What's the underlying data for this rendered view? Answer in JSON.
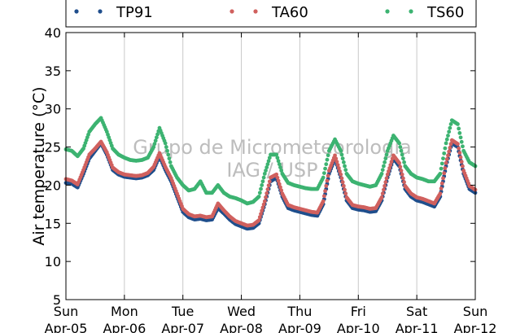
{
  "chart_data": {
    "type": "scatter",
    "title": "",
    "xlabel": "",
    "ylabel": "Air temperature (°C)",
    "ylim": [
      5,
      40
    ],
    "yticks": [
      5,
      10,
      15,
      20,
      25,
      30,
      35,
      40
    ],
    "grid": "vertical",
    "legend_position": "top",
    "x_ticks": [
      {
        "day": 0,
        "label1": "Sun",
        "label2": "Apr-05"
      },
      {
        "day": 1,
        "label1": "Mon",
        "label2": "Apr-06"
      },
      {
        "day": 2,
        "label1": "Tue",
        "label2": "Apr-07"
      },
      {
        "day": 3,
        "label1": "Wed",
        "label2": "Apr-08"
      },
      {
        "day": 4,
        "label1": "Thu",
        "label2": "Apr-09"
      },
      {
        "day": 5,
        "label1": "Fri",
        "label2": "Apr-10"
      },
      {
        "day": 6,
        "label1": "Sat",
        "label2": "Apr-11"
      },
      {
        "day": 7,
        "label1": "Sun",
        "label2": "Apr-12"
      }
    ],
    "watermark": [
      "Grupo de Micrometeorologia",
      "IAG / USP"
    ],
    "series": [
      {
        "name": "TP91",
        "color": "#1f4e8c",
        "points": [
          [
            0.0,
            20.3
          ],
          [
            0.1,
            20.2
          ],
          [
            0.2,
            19.7
          ],
          [
            0.3,
            21.5
          ],
          [
            0.4,
            23.5
          ],
          [
            0.5,
            24.5
          ],
          [
            0.6,
            25.5
          ],
          [
            0.7,
            24.0
          ],
          [
            0.8,
            22.0
          ],
          [
            0.9,
            21.4
          ],
          [
            1.0,
            21.1
          ],
          [
            1.1,
            21.0
          ],
          [
            1.2,
            20.9
          ],
          [
            1.3,
            21.0
          ],
          [
            1.4,
            21.3
          ],
          [
            1.5,
            22.0
          ],
          [
            1.6,
            23.8
          ],
          [
            1.7,
            22.0
          ],
          [
            1.8,
            20.5
          ],
          [
            1.9,
            18.5
          ],
          [
            2.0,
            16.5
          ],
          [
            2.1,
            15.8
          ],
          [
            2.2,
            15.5
          ],
          [
            2.3,
            15.6
          ],
          [
            2.4,
            15.4
          ],
          [
            2.5,
            15.5
          ],
          [
            2.6,
            17.0
          ],
          [
            2.7,
            16.3
          ],
          [
            2.8,
            15.5
          ],
          [
            2.9,
            14.9
          ],
          [
            3.0,
            14.6
          ],
          [
            3.1,
            14.3
          ],
          [
            3.2,
            14.4
          ],
          [
            3.3,
            15.0
          ],
          [
            3.4,
            17.5
          ],
          [
            3.5,
            20.5
          ],
          [
            3.6,
            21.0
          ],
          [
            3.7,
            18.5
          ],
          [
            3.8,
            17.0
          ],
          [
            3.9,
            16.7
          ],
          [
            4.0,
            16.5
          ],
          [
            4.1,
            16.3
          ],
          [
            4.2,
            16.1
          ],
          [
            4.3,
            16.0
          ],
          [
            4.4,
            17.5
          ],
          [
            4.5,
            21.5
          ],
          [
            4.6,
            23.5
          ],
          [
            4.7,
            21.0
          ],
          [
            4.8,
            18.0
          ],
          [
            4.9,
            17.0
          ],
          [
            5.0,
            16.8
          ],
          [
            5.1,
            16.7
          ],
          [
            5.2,
            16.5
          ],
          [
            5.3,
            16.6
          ],
          [
            5.4,
            18.0
          ],
          [
            5.5,
            21.0
          ],
          [
            5.6,
            23.5
          ],
          [
            5.7,
            22.5
          ],
          [
            5.8,
            19.5
          ],
          [
            5.9,
            18.5
          ],
          [
            6.0,
            18.0
          ],
          [
            6.1,
            17.8
          ],
          [
            6.2,
            17.5
          ],
          [
            6.3,
            17.2
          ],
          [
            6.4,
            18.5
          ],
          [
            6.5,
            22.5
          ],
          [
            6.6,
            25.5
          ],
          [
            6.7,
            25.0
          ],
          [
            6.8,
            21.5
          ],
          [
            6.9,
            19.5
          ],
          [
            7.0,
            19.0
          ]
        ]
      },
      {
        "name": "TA60",
        "color": "#d0605e",
        "points": [
          [
            0.0,
            20.8
          ],
          [
            0.1,
            20.6
          ],
          [
            0.2,
            20.1
          ],
          [
            0.3,
            22.0
          ],
          [
            0.4,
            24.0
          ],
          [
            0.5,
            24.8
          ],
          [
            0.6,
            25.7
          ],
          [
            0.7,
            24.3
          ],
          [
            0.8,
            22.3
          ],
          [
            0.9,
            21.7
          ],
          [
            1.0,
            21.4
          ],
          [
            1.1,
            21.3
          ],
          [
            1.2,
            21.2
          ],
          [
            1.3,
            21.3
          ],
          [
            1.4,
            21.6
          ],
          [
            1.5,
            22.4
          ],
          [
            1.6,
            24.2
          ],
          [
            1.7,
            22.4
          ],
          [
            1.8,
            20.9
          ],
          [
            1.9,
            18.9
          ],
          [
            2.0,
            16.9
          ],
          [
            2.1,
            16.2
          ],
          [
            2.2,
            15.9
          ],
          [
            2.3,
            16.0
          ],
          [
            2.4,
            15.8
          ],
          [
            2.5,
            15.9
          ],
          [
            2.6,
            17.6
          ],
          [
            2.7,
            16.7
          ],
          [
            2.8,
            15.9
          ],
          [
            2.9,
            15.3
          ],
          [
            3.0,
            15.0
          ],
          [
            3.1,
            14.7
          ],
          [
            3.2,
            14.8
          ],
          [
            3.3,
            15.4
          ],
          [
            3.4,
            17.9
          ],
          [
            3.5,
            21.0
          ],
          [
            3.6,
            21.4
          ],
          [
            3.7,
            18.9
          ],
          [
            3.8,
            17.4
          ],
          [
            3.9,
            17.1
          ],
          [
            4.0,
            16.9
          ],
          [
            4.1,
            16.7
          ],
          [
            4.2,
            16.5
          ],
          [
            4.3,
            16.4
          ],
          [
            4.4,
            17.9
          ],
          [
            4.5,
            21.9
          ],
          [
            4.6,
            23.9
          ],
          [
            4.7,
            21.4
          ],
          [
            4.8,
            18.4
          ],
          [
            4.9,
            17.4
          ],
          [
            5.0,
            17.2
          ],
          [
            5.1,
            17.1
          ],
          [
            5.2,
            16.9
          ],
          [
            5.3,
            17.0
          ],
          [
            5.4,
            18.4
          ],
          [
            5.5,
            21.4
          ],
          [
            5.6,
            23.9
          ],
          [
            5.7,
            22.9
          ],
          [
            5.8,
            19.9
          ],
          [
            5.9,
            18.9
          ],
          [
            6.0,
            18.4
          ],
          [
            6.1,
            18.2
          ],
          [
            6.2,
            17.9
          ],
          [
            6.3,
            17.6
          ],
          [
            6.4,
            18.9
          ],
          [
            6.5,
            22.9
          ],
          [
            6.6,
            25.9
          ],
          [
            6.7,
            25.4
          ],
          [
            6.8,
            21.9
          ],
          [
            6.9,
            19.9
          ],
          [
            7.0,
            19.4
          ]
        ]
      },
      {
        "name": "TS60",
        "color": "#3cb371",
        "points": [
          [
            0.0,
            24.7
          ],
          [
            0.1,
            24.5
          ],
          [
            0.2,
            23.8
          ],
          [
            0.3,
            24.8
          ],
          [
            0.4,
            27.0
          ],
          [
            0.5,
            28.0
          ],
          [
            0.6,
            28.8
          ],
          [
            0.7,
            27.0
          ],
          [
            0.8,
            24.8
          ],
          [
            0.9,
            24.0
          ],
          [
            1.0,
            23.6
          ],
          [
            1.1,
            23.3
          ],
          [
            1.2,
            23.2
          ],
          [
            1.3,
            23.3
          ],
          [
            1.4,
            23.6
          ],
          [
            1.5,
            25.0
          ],
          [
            1.6,
            27.5
          ],
          [
            1.7,
            25.5
          ],
          [
            1.8,
            22.5
          ],
          [
            1.9,
            21.0
          ],
          [
            2.0,
            20.0
          ],
          [
            2.1,
            19.3
          ],
          [
            2.2,
            19.5
          ],
          [
            2.3,
            20.5
          ],
          [
            2.4,
            19.0
          ],
          [
            2.5,
            19.0
          ],
          [
            2.6,
            20.0
          ],
          [
            2.7,
            19.0
          ],
          [
            2.8,
            18.5
          ],
          [
            2.9,
            18.3
          ],
          [
            3.0,
            18.0
          ],
          [
            3.1,
            17.6
          ],
          [
            3.2,
            17.8
          ],
          [
            3.3,
            18.5
          ],
          [
            3.4,
            21.5
          ],
          [
            3.5,
            24.0
          ],
          [
            3.6,
            24.0
          ],
          [
            3.7,
            21.5
          ],
          [
            3.8,
            20.3
          ],
          [
            3.9,
            20.0
          ],
          [
            4.0,
            19.8
          ],
          [
            4.1,
            19.6
          ],
          [
            4.2,
            19.5
          ],
          [
            4.3,
            19.5
          ],
          [
            4.4,
            21.0
          ],
          [
            4.5,
            24.5
          ],
          [
            4.6,
            26.0
          ],
          [
            4.7,
            24.5
          ],
          [
            4.8,
            21.5
          ],
          [
            4.9,
            20.5
          ],
          [
            5.0,
            20.2
          ],
          [
            5.1,
            20.0
          ],
          [
            5.2,
            19.8
          ],
          [
            5.3,
            20.0
          ],
          [
            5.4,
            21.5
          ],
          [
            5.5,
            24.5
          ],
          [
            5.6,
            26.5
          ],
          [
            5.7,
            25.5
          ],
          [
            5.8,
            22.5
          ],
          [
            5.9,
            21.5
          ],
          [
            6.0,
            21.0
          ],
          [
            6.1,
            20.8
          ],
          [
            6.2,
            20.5
          ],
          [
            6.3,
            20.5
          ],
          [
            6.4,
            21.5
          ],
          [
            6.5,
            25.5
          ],
          [
            6.6,
            28.5
          ],
          [
            6.7,
            28.0
          ],
          [
            6.8,
            24.5
          ],
          [
            6.9,
            23.0
          ],
          [
            7.0,
            22.5
          ]
        ]
      }
    ]
  }
}
